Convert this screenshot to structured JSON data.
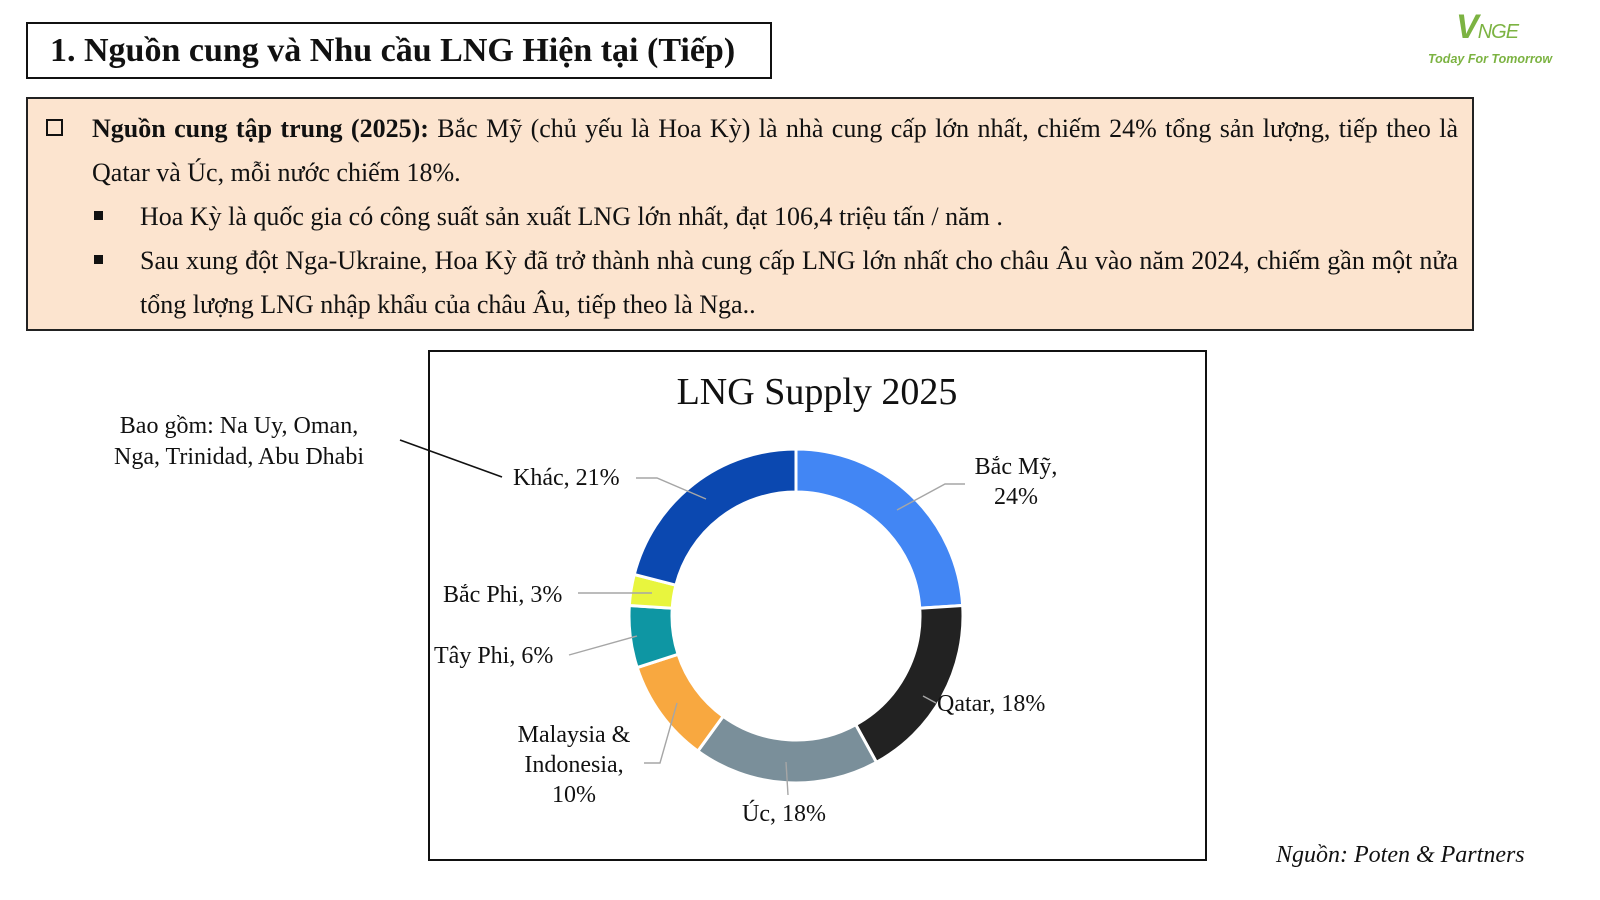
{
  "header": {
    "title": "1. Nguồn cung và Nhu cầu LNG Hiện tại (Tiếp)"
  },
  "logo": {
    "mark_main": "V",
    "mark_rest": "NGE",
    "tagline": "Today For Tomorrow",
    "color": "#7cb342"
  },
  "info": {
    "lead_bold": "Nguồn cung tập trung (2025):",
    "lead_text": " Bắc Mỹ (chủ yếu là Hoa Kỳ) là nhà cung cấp lớn nhất, chiếm 24% tổng sản lượng, tiếp theo là Qatar và Úc, mỗi nước chiếm 18%.",
    "bullets": [
      "Hoa Kỳ là quốc gia có công suất sản xuất LNG lớn nhất, đạt 106,4 triệu tấn / năm .",
      "Sau xung đột Nga-Ukraine, Hoa Kỳ đã trở thành nhà cung cấp LNG lớn nhất cho châu Âu vào năm 2024, chiếm gần một nửa tổng lượng LNG nhập khẩu của châu Âu, tiếp theo là Nga.."
    ],
    "background": "#fce4cf"
  },
  "chart_data": {
    "type": "pie",
    "title": "LNG Supply 2025",
    "categories": [
      "Bắc Mỹ",
      "Qatar",
      "Úc",
      "Malaysia & Indonesia",
      "Tây Phi",
      "Bắc Phi",
      "Khác"
    ],
    "values": [
      24,
      18,
      18,
      10,
      6,
      3,
      21
    ],
    "unit": "%",
    "colors": [
      "#4286f4",
      "#222222",
      "#7a8f9a",
      "#f8a840",
      "#0e96a3",
      "#e8f53e",
      "#0b48b0"
    ],
    "labels": [
      "Bắc Mỹ,",
      "24%",
      "Qatar, 18%",
      "Úc, 18%",
      "Malaysia &",
      "Indonesia,",
      "10%",
      "Tây Phi, 6%",
      "Bắc Phi, 3%",
      "Khác, 21%"
    ],
    "hole": "donut",
    "legend": "none"
  },
  "callout": {
    "line1": "Bao gồm: Na Uy, Oman,",
    "line2": "Nga, Trinidad, Abu Dhabi"
  },
  "source": "Nguồn: Poten & Partners"
}
